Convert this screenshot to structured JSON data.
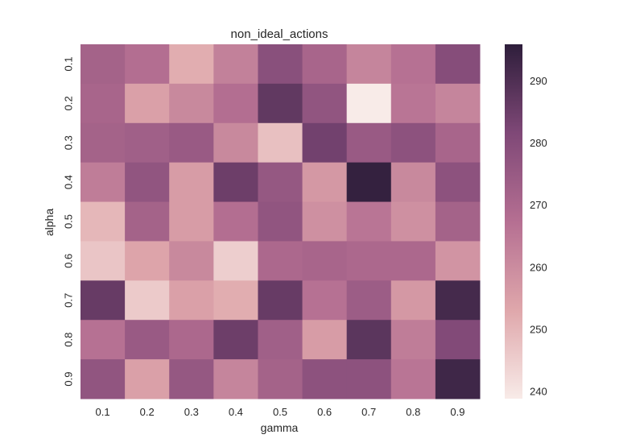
{
  "chart_data": {
    "type": "heatmap",
    "title": "non_ideal_actions",
    "xlabel": "gamma",
    "ylabel": "alpha",
    "x_categories": [
      "0.1",
      "0.2",
      "0.3",
      "0.4",
      "0.5",
      "0.6",
      "0.7",
      "0.8",
      "0.9"
    ],
    "y_categories": [
      "0.1",
      "0.2",
      "0.3",
      "0.4",
      "0.5",
      "0.6",
      "0.7",
      "0.8",
      "0.9"
    ],
    "values": [
      [
        272,
        268,
        252,
        263,
        279,
        271,
        262,
        267,
        280
      ],
      [
        271,
        255,
        261,
        268,
        287,
        277,
        239,
        266,
        262
      ],
      [
        272,
        273,
        275,
        261,
        248,
        284,
        275,
        278,
        271
      ],
      [
        264,
        277,
        256,
        285,
        276,
        257,
        295,
        261,
        278
      ],
      [
        250,
        272,
        256,
        268,
        277,
        259,
        266,
        259,
        272
      ],
      [
        247,
        254,
        261,
        245,
        270,
        271,
        270,
        270,
        258
      ],
      [
        286,
        246,
        255,
        252,
        286,
        267,
        274,
        257,
        292
      ],
      [
        267,
        275,
        270,
        285,
        273,
        256,
        288,
        264,
        281
      ],
      [
        277,
        255,
        276,
        262,
        272,
        278,
        278,
        266,
        293
      ]
    ],
    "colorbar": {
      "ticks": [
        "240",
        "250",
        "260",
        "270",
        "280",
        "290"
      ],
      "min": 239,
      "max": 296,
      "colors": [
        "#f8ebe8",
        "#dfa7ab",
        "#b56f92",
        "#7f4877",
        "#2e1e3b"
      ]
    },
    "grid": false
  }
}
